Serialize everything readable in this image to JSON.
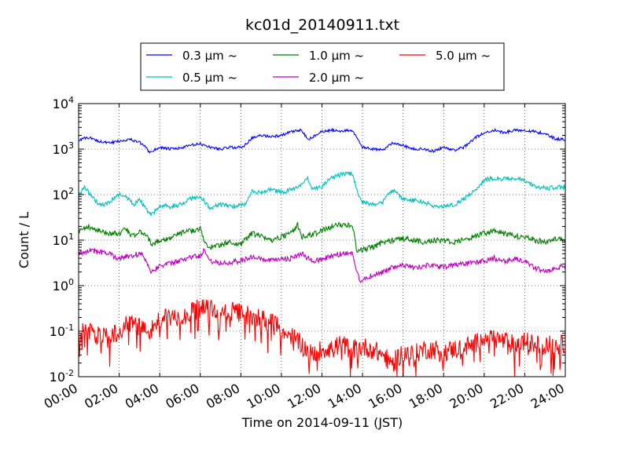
{
  "chart_data": {
    "type": "line",
    "title": "kc01d_20140911.txt",
    "xlabel": "Time on 2014-09-11 (JST)",
    "ylabel": "Count / L",
    "x_unit": "hours",
    "xlim": [
      0,
      24
    ],
    "yscale": "log",
    "ylim": [
      0.01,
      10000
    ],
    "grid": true,
    "legend_position": "top-center",
    "x_ticks": [
      "00:00",
      "02:00",
      "04:00",
      "06:00",
      "08:00",
      "10:00",
      "12:00",
      "14:00",
      "16:00",
      "18:00",
      "20:00",
      "22:00",
      "24:00"
    ],
    "y_ticks": [
      {
        "value": 0.01,
        "base": "10",
        "exp": "-2"
      },
      {
        "value": 0.1,
        "base": "10",
        "exp": "-1"
      },
      {
        "value": 1,
        "base": "10",
        "exp": "0"
      },
      {
        "value": 10,
        "base": "10",
        "exp": "1"
      },
      {
        "value": 100,
        "base": "10",
        "exp": "2"
      },
      {
        "value": 1000,
        "base": "10",
        "exp": "3"
      },
      {
        "value": 10000,
        "base": "10",
        "exp": "4"
      }
    ],
    "series": [
      {
        "name": "0.3 μm ~",
        "color": "#0000ff",
        "noise": 0.03,
        "x": [
          0,
          0.5,
          1,
          1.5,
          2,
          2.5,
          3,
          3.3,
          3.5,
          4,
          4.5,
          5,
          5.5,
          6,
          6.5,
          7,
          7.5,
          8,
          8.2,
          8.5,
          9,
          9.5,
          10,
          10.5,
          11,
          11.3,
          11.5,
          12,
          12.5,
          13,
          13.5,
          13.8,
          14,
          14.5,
          15,
          15.5,
          16,
          16.5,
          17,
          17.5,
          18,
          18.5,
          19,
          19.5,
          20,
          20.5,
          21,
          21.5,
          22,
          22.5,
          23,
          23.5,
          24
        ],
        "values": [
          1600,
          1800,
          1500,
          1350,
          1500,
          1650,
          1400,
          1100,
          850,
          1100,
          1000,
          1050,
          1200,
          1300,
          1100,
          1000,
          1100,
          1100,
          1200,
          1700,
          2000,
          1900,
          2000,
          2400,
          2600,
          1600,
          1800,
          2400,
          2600,
          2500,
          2600,
          1500,
          1100,
          1000,
          950,
          1400,
          1200,
          1000,
          1000,
          900,
          1100,
          950,
          1100,
          1700,
          2300,
          2600,
          2300,
          2600,
          2600,
          2400,
          2200,
          1700,
          1600
        ]
      },
      {
        "name": "0.5 μm ~",
        "color": "#00bfbf",
        "noise": 0.05,
        "x": [
          0,
          0.3,
          0.7,
          1,
          1.3,
          1.7,
          2,
          2.3,
          2.7,
          3,
          3.3,
          3.6,
          4,
          4.5,
          5,
          5.5,
          6,
          6.5,
          7,
          7.5,
          8,
          8.3,
          8.5,
          9,
          9.5,
          10,
          10.5,
          11,
          11.3,
          11.5,
          12,
          12.5,
          13,
          13.5,
          13.8,
          14,
          14.5,
          15,
          15.5,
          16,
          16.5,
          17,
          17.5,
          18,
          18.5,
          19,
          19.5,
          20,
          20.5,
          21,
          21.5,
          22,
          22.5,
          23,
          23.5,
          24
        ],
        "values": [
          100,
          140,
          90,
          60,
          60,
          80,
          100,
          90,
          60,
          80,
          50,
          35,
          60,
          55,
          60,
          80,
          90,
          50,
          60,
          55,
          60,
          65,
          120,
          110,
          130,
          110,
          130,
          160,
          220,
          140,
          150,
          240,
          280,
          290,
          100,
          70,
          60,
          70,
          130,
          80,
          75,
          70,
          55,
          55,
          60,
          80,
          120,
          210,
          230,
          220,
          230,
          200,
          150,
          140,
          140,
          150
        ]
      },
      {
        "name": "1.0 μm ~",
        "color": "#007f00",
        "noise": 0.06,
        "x": [
          0,
          0.5,
          1,
          1.5,
          2,
          2.3,
          2.7,
          3,
          3.3,
          3.6,
          4,
          4.5,
          5,
          5.5,
          6,
          6.2,
          6.5,
          7,
          7.5,
          8,
          8.5,
          9,
          9.5,
          10,
          10.5,
          10.8,
          11,
          11.5,
          12,
          12.5,
          13,
          13.5,
          13.7,
          13.9,
          14.5,
          15,
          15.5,
          16,
          16.5,
          17,
          17.5,
          18,
          18.5,
          19,
          19.5,
          20,
          20.5,
          21,
          21.5,
          22,
          22.5,
          23,
          23.5,
          24
        ],
        "values": [
          15,
          20,
          16,
          14,
          14,
          18,
          12,
          15,
          14,
          8,
          10,
          11,
          14,
          16,
          18,
          9,
          7,
          8,
          9,
          8,
          14,
          12,
          10,
          12,
          14,
          22,
          12,
          13,
          16,
          20,
          22,
          22,
          6,
          6,
          7,
          9,
          10,
          11,
          10,
          9,
          10,
          10,
          9,
          10,
          12,
          14,
          16,
          14,
          12,
          12,
          10,
          9,
          11,
          10
        ]
      },
      {
        "name": "2.0 μm ~",
        "color": "#bf00bf",
        "noise": 0.06,
        "x": [
          0,
          0.5,
          1,
          1.5,
          2,
          2.5,
          3,
          3.2,
          3.4,
          3.6,
          4,
          4.5,
          5,
          5.5,
          6,
          6.2,
          6.5,
          7,
          7.5,
          8,
          8.5,
          9,
          9.5,
          10,
          10.5,
          11,
          11.5,
          12,
          12.5,
          13,
          13.5,
          13.7,
          13.9,
          14.5,
          15,
          15.5,
          16,
          16.5,
          17,
          17.5,
          18,
          18.5,
          19,
          19.5,
          20,
          20.5,
          21,
          21.5,
          22,
          22.5,
          23,
          23.5,
          24
        ],
        "values": [
          5,
          6,
          5.5,
          5,
          4,
          4.5,
          5,
          4.5,
          3,
          2,
          2.8,
          3,
          3.5,
          4.2,
          4.5,
          6,
          3.5,
          3.2,
          3.3,
          3.5,
          4.3,
          3.8,
          3.5,
          3.8,
          4,
          5,
          3.5,
          3.8,
          4.5,
          5,
          5.5,
          2,
          1.3,
          1.7,
          2,
          2.5,
          2.8,
          2.5,
          2.7,
          2.8,
          2.5,
          2.8,
          3,
          3.2,
          3.5,
          4,
          3.5,
          3.8,
          3.5,
          2.5,
          2,
          2.5,
          2.8
        ]
      },
      {
        "name": "5.0 μm ~",
        "color": "#ff0000",
        "noise": 0.22,
        "x": [
          0,
          0.5,
          1,
          1.5,
          2,
          2.5,
          3,
          3.5,
          4,
          4.5,
          5,
          5.5,
          6,
          6.5,
          7,
          7.5,
          8,
          8.5,
          9,
          9.5,
          10,
          10.5,
          11,
          11.5,
          12,
          12.5,
          13,
          13.5,
          14,
          14.5,
          15,
          15.5,
          16,
          16.5,
          17,
          17.5,
          18,
          18.5,
          19,
          19.5,
          20,
          20.5,
          21,
          21.5,
          22,
          22.5,
          23,
          23.5,
          24
        ],
        "values": [
          0.12,
          0.1,
          0.08,
          0.07,
          0.1,
          0.15,
          0.13,
          0.1,
          0.18,
          0.2,
          0.22,
          0.25,
          0.32,
          0.3,
          0.25,
          0.27,
          0.25,
          0.22,
          0.2,
          0.15,
          0.11,
          0.08,
          0.05,
          0.03,
          0.04,
          0.045,
          0.05,
          0.04,
          0.045,
          0.04,
          0.03,
          0.02,
          0.035,
          0.03,
          0.04,
          0.04,
          0.035,
          0.04,
          0.045,
          0.05,
          0.08,
          0.07,
          0.06,
          0.05,
          0.06,
          0.05,
          0.05,
          0.05,
          0.05
        ]
      }
    ]
  }
}
